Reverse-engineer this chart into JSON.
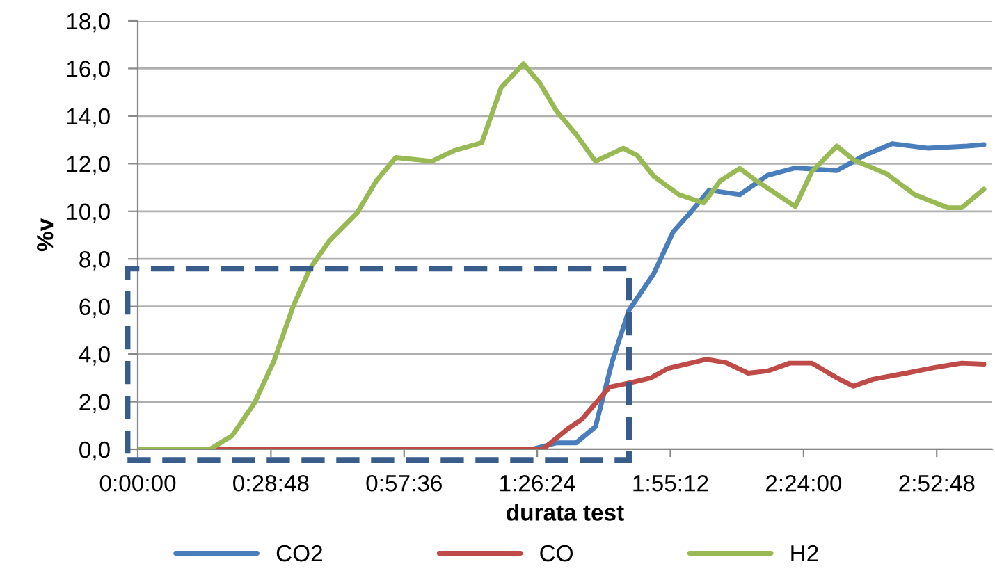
{
  "chart_data": {
    "type": "line",
    "xlabel": "durata test",
    "ylabel": "%v",
    "xlim": [
      0,
      3.08
    ],
    "xticks": [
      {
        "value": 0,
        "label": "0:00:00"
      },
      {
        "value": 0.48,
        "label": "0:28:48"
      },
      {
        "value": 0.96,
        "label": "0:57:36"
      },
      {
        "value": 1.44,
        "label": "1:26:24"
      },
      {
        "value": 1.92,
        "label": "1:55:12"
      },
      {
        "value": 2.4,
        "label": "2:24:00"
      },
      {
        "value": 2.88,
        "label": "2:52:48"
      }
    ],
    "ylim": [
      0,
      18
    ],
    "yticks": [
      {
        "value": 0,
        "label": "0,0"
      },
      {
        "value": 2,
        "label": "2,0"
      },
      {
        "value": 4,
        "label": "4,0"
      },
      {
        "value": 6,
        "label": "6,0"
      },
      {
        "value": 8,
        "label": "8,0"
      },
      {
        "value": 10,
        "label": "10,0"
      },
      {
        "value": 12,
        "label": "12,0"
      },
      {
        "value": 14,
        "label": "14,0"
      },
      {
        "value": 16,
        "label": "16,0"
      },
      {
        "value": 18,
        "label": "18,0"
      }
    ],
    "grid": "y",
    "legend": "bottom",
    "marker": "none",
    "line_style": "solid",
    "series": [
      {
        "name": "CO2",
        "color": "#4a7ebb",
        "x": [
          0,
          1.42,
          1.51,
          1.58,
          1.65,
          1.71,
          1.77,
          1.86,
          1.93,
          1.99,
          2.06,
          2.17,
          2.27,
          2.37,
          2.52,
          2.62,
          2.72,
          2.85,
          2.99,
          3.05
        ],
        "values": [
          0,
          0,
          0.27,
          0.27,
          0.95,
          3.68,
          5.83,
          7.38,
          9.14,
          9.92,
          10.89,
          10.7,
          11.51,
          11.82,
          11.71,
          12.35,
          12.84,
          12.65,
          12.74,
          12.8
        ]
      },
      {
        "name": "CO",
        "color": "#be4b48",
        "x": [
          0,
          1.46,
          1.55,
          1.6,
          1.7,
          1.78,
          1.85,
          1.91,
          2.05,
          2.12,
          2.2,
          2.27,
          2.35,
          2.43,
          2.52,
          2.58,
          2.65,
          2.77,
          2.87,
          2.97,
          3.05
        ],
        "values": [
          0,
          0,
          0.86,
          1.25,
          2.61,
          2.81,
          3.0,
          3.39,
          3.78,
          3.64,
          3.2,
          3.29,
          3.62,
          3.62,
          3.0,
          2.65,
          2.94,
          3.2,
          3.43,
          3.62,
          3.58
        ]
      },
      {
        "name": "H2",
        "color": "#98b954",
        "x": [
          0,
          0.26,
          0.34,
          0.42,
          0.49,
          0.56,
          0.62,
          0.69,
          0.79,
          0.86,
          0.93,
          1.06,
          1.14,
          1.24,
          1.31,
          1.39,
          1.45,
          1.51,
          1.58,
          1.65,
          1.75,
          1.8,
          1.86,
          1.95,
          2.04,
          2.1,
          2.17,
          2.23,
          2.37,
          2.43,
          2.52,
          2.58,
          2.7,
          2.8,
          2.92,
          2.97,
          3.05
        ],
        "values": [
          0,
          0,
          0.57,
          1.93,
          3.68,
          6.0,
          7.58,
          8.75,
          9.92,
          11.28,
          12.26,
          12.1,
          12.55,
          12.88,
          15.2,
          16.2,
          15.37,
          14.2,
          13.23,
          12.1,
          12.65,
          12.35,
          11.47,
          10.7,
          10.35,
          11.28,
          11.8,
          11.28,
          10.2,
          11.67,
          12.74,
          12.16,
          11.57,
          10.7,
          10.15,
          10.15,
          10.93
        ]
      }
    ]
  }
}
